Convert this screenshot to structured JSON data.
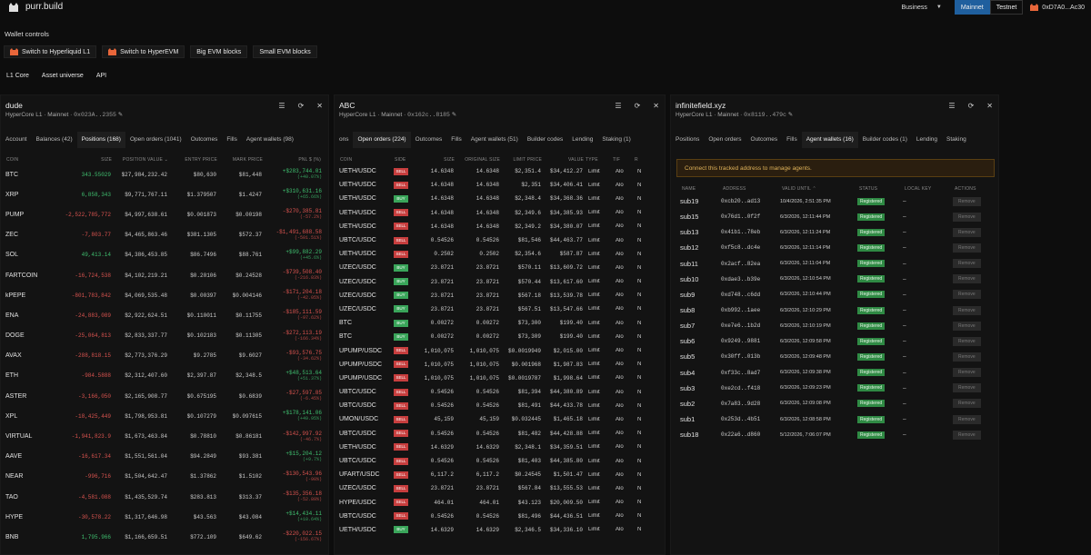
{
  "app": {
    "title": "purr.build"
  },
  "top": {
    "business": "Business",
    "mainnet": "Mainnet",
    "testnet": "Testnet",
    "address": "0xD7A0...Ac30"
  },
  "wallet_controls": {
    "title": "Wallet controls",
    "buttons": [
      "Switch to Hyperliquid L1",
      "Switch to HyperEVM",
      "Big EVM blocks",
      "Small EVM blocks"
    ]
  },
  "nav": [
    "L1 Core",
    "Asset universe",
    "API"
  ],
  "panels": [
    {
      "title": "dude",
      "network": "HyperCore L1 · Mainnet · ",
      "address": "0x023A..2355",
      "tabs": [
        "Account",
        "Balances (42)",
        "Positions (168)",
        "Open orders (1041)",
        "Outcomes",
        "Fills",
        "Agent wallets (98)"
      ],
      "active_tab": 2,
      "headers": [
        "COIN",
        "SIZE",
        "POSITION VALUE ⌄",
        "ENTRY PRICE",
        "MARK PRICE",
        "PNL $ (%)"
      ],
      "rows": [
        [
          "BTC",
          "343.55029",
          "$27,984,232.42",
          "$80,630",
          "$81,448",
          "+$283,744.01",
          "(+40.07%)"
        ],
        [
          "XRP",
          "6,858,343",
          "$9,771,767.11",
          "$1.379507",
          "$1.4247",
          "+$310,631.16",
          "(+65.66%)"
        ],
        [
          "PUMP",
          "-2,522,785,772",
          "$4,997,638.61",
          "$0.001873",
          "$0.00198",
          "-$270,385.81",
          "(-57.2%)"
        ],
        [
          "ZEC",
          "-7,803.77",
          "$4,465,863.46",
          "$381.1305",
          "$572.37",
          "-$1,491,688.58",
          "(-501.51%)"
        ],
        [
          "SOL",
          "49,413.14",
          "$4,386,453.85",
          "$86.7496",
          "$88.761",
          "+$99,882.29",
          "(+45.6%)"
        ],
        [
          "FARTCOIN",
          "-16,724,538",
          "$4,102,219.21",
          "$0.20106",
          "$0.24528",
          "-$739,508.40",
          "(-216.83%)"
        ],
        [
          "kPEPE",
          "-801,783,842",
          "$4,069,535.48",
          "$0.00397",
          "$0.004146",
          "-$171,204.18",
          "(-42.05%)"
        ],
        [
          "ENA",
          "-24,883,089",
          "$2,922,624.51",
          "$0.110011",
          "$0.11755",
          "-$185,111.59",
          "(-97.62%)"
        ],
        [
          "DOGE",
          "-25,064,813",
          "$2,833,337.77",
          "$0.102183",
          "$0.11305",
          "-$272,113.19",
          "(-166.34%)"
        ],
        [
          "AVAX",
          "-288,818.15",
          "$2,773,376.29",
          "$9.2785",
          "$9.6027",
          "-$93,576.75",
          "(-34.62%)"
        ],
        [
          "ETH",
          "-984.5888",
          "$2,312,407.60",
          "$2,397.87",
          "$2,348.5",
          "+$48,513.64",
          "(+51.37%)"
        ],
        [
          "ASTER",
          "-3,166,050",
          "$2,165,908.77",
          "$0.675195",
          "$0.6839",
          "-$27,597.85",
          "(-6.45%)"
        ],
        [
          "XPL",
          "-18,425,449",
          "$1,798,953.81",
          "$0.107279",
          "$0.097615",
          "+$178,141.06",
          "(+49.95%)"
        ],
        [
          "VIRTUAL",
          "-1,941,823.9",
          "$1,673,463.84",
          "$0.78810",
          "$0.86181",
          "-$142,997.92",
          "(-46.7%)"
        ],
        [
          "AAVE",
          "-16,617.34",
          "$1,551,561.04",
          "$94.2849",
          "$93.381",
          "+$15,204.12",
          "(+9.7%)"
        ],
        [
          "NEAR",
          "-996,716",
          "$1,504,642.47",
          "$1.37862",
          "$1.5102",
          "-$130,543.96",
          "(-90%)"
        ],
        [
          "TAO",
          "-4,581.088",
          "$1,435,529.74",
          "$283.813",
          "$313.37",
          "-$135,356.18",
          "(-52.89%)"
        ],
        [
          "HYPE",
          "-30,578.22",
          "$1,317,646.98",
          "$43.563",
          "$43.084",
          "+$14,434.11",
          "(+10.64%)"
        ],
        [
          "BNB",
          "1,795.966",
          "$1,166,659.51",
          "$772.109",
          "$649.62",
          "-$220,022.15",
          "(-156.67%)"
        ]
      ]
    },
    {
      "title": "ABC",
      "network": "HyperCore L1 · Mainnet · ",
      "address": "0x162c..8185",
      "tabs": [
        "ons",
        "Open orders (224)",
        "Outcomes",
        "Fills",
        "Agent wallets (51)",
        "Builder codes",
        "Lending",
        "Staking (1)"
      ],
      "active_tab": 1,
      "headers": [
        "COIN",
        "SIDE",
        "SIZE",
        "ORIGINAL SIZE",
        "LIMIT PRICE",
        "VALUE",
        "TYPE",
        "TIF",
        "R"
      ],
      "rows": [
        [
          "UETH/USDC",
          "SELL",
          "14.6348",
          "14.6348",
          "$2,351.4",
          "$34,412.27",
          "Limit",
          "Alo",
          "N"
        ],
        [
          "UETH/USDC",
          "SELL",
          "14.6348",
          "14.6348",
          "$2,351",
          "$34,406.41",
          "Limit",
          "Alo",
          "N"
        ],
        [
          "UETH/USDC",
          "BUY",
          "14.6348",
          "14.6348",
          "$2,348.4",
          "$34,368.36",
          "Limit",
          "Alo",
          "N"
        ],
        [
          "UETH/USDC",
          "SELL",
          "14.6348",
          "14.6348",
          "$2,349.6",
          "$34,385.93",
          "Limit",
          "Alo",
          "N"
        ],
        [
          "UETH/USDC",
          "SELL",
          "14.6348",
          "14.6348",
          "$2,349.2",
          "$34,380.07",
          "Limit",
          "Alo",
          "N"
        ],
        [
          "UBTC/USDC",
          "SELL",
          "0.54526",
          "0.54526",
          "$81,546",
          "$44,463.77",
          "Limit",
          "Alo",
          "N"
        ],
        [
          "UETH/USDC",
          "SELL",
          "0.2502",
          "0.2502",
          "$2,354.6",
          "$587.87",
          "Limit",
          "Alo",
          "N"
        ],
        [
          "UZEC/USDC",
          "BUY",
          "23.8721",
          "23.8721",
          "$570.11",
          "$13,609.72",
          "Limit",
          "Alo",
          "N"
        ],
        [
          "UZEC/USDC",
          "BUY",
          "23.8721",
          "23.8721",
          "$570.44",
          "$13,617.60",
          "Limit",
          "Alo",
          "N"
        ],
        [
          "UZEC/USDC",
          "BUY",
          "23.8721",
          "23.8721",
          "$567.18",
          "$13,539.78",
          "Limit",
          "Alo",
          "N"
        ],
        [
          "UZEC/USDC",
          "BUY",
          "23.8721",
          "23.8721",
          "$567.51",
          "$13,547.66",
          "Limit",
          "Alo",
          "N"
        ],
        [
          "BTC",
          "BUY",
          "0.00272",
          "0.00272",
          "$73,300",
          "$199.40",
          "Limit",
          "Alo",
          "N"
        ],
        [
          "BTC",
          "BUY",
          "0.00272",
          "0.00272",
          "$73,309",
          "$199.40",
          "Limit",
          "Alo",
          "N"
        ],
        [
          "UPUMP/USDC",
          "SELL",
          "1,010,075",
          "1,010,075",
          "$0.0019949",
          "$2,015.00",
          "Limit",
          "Alo",
          "N"
        ],
        [
          "UPUMP/USDC",
          "SELL",
          "1,010,075",
          "1,010,075",
          "$0.001968",
          "$1,987.83",
          "Limit",
          "Alo",
          "N"
        ],
        [
          "UPUMP/USDC",
          "SELL",
          "1,010,075",
          "1,010,075",
          "$0.0019787",
          "$1,998.64",
          "Limit",
          "Alo",
          "N"
        ],
        [
          "UBTC/USDC",
          "SELL",
          "0.54526",
          "0.54526",
          "$81,394",
          "$44,380.89",
          "Limit",
          "Alo",
          "N"
        ],
        [
          "UBTC/USDC",
          "SELL",
          "0.54526",
          "0.54526",
          "$81,491",
          "$44,433.78",
          "Limit",
          "Alo",
          "N"
        ],
        [
          "UMON/USDC",
          "SELL",
          "45,159",
          "45,159",
          "$0.032445",
          "$1,465.18",
          "Limit",
          "Alo",
          "N"
        ],
        [
          "UBTC/USDC",
          "SELL",
          "0.54526",
          "0.54526",
          "$81,482",
          "$44,428.88",
          "Limit",
          "Alo",
          "N"
        ],
        [
          "UETH/USDC",
          "SELL",
          "14.6329",
          "14.6329",
          "$2,348.1",
          "$34,359.51",
          "Limit",
          "Alo",
          "N"
        ],
        [
          "UBTC/USDC",
          "SELL",
          "0.54526",
          "0.54526",
          "$81,403",
          "$44,385.80",
          "Limit",
          "Alo",
          "N"
        ],
        [
          "UFART/USDC",
          "SELL",
          "6,117.2",
          "6,117.2",
          "$0.24545",
          "$1,501.47",
          "Limit",
          "Alo",
          "N"
        ],
        [
          "UZEC/USDC",
          "SELL",
          "23.8721",
          "23.8721",
          "$567.84",
          "$13,555.53",
          "Limit",
          "Alo",
          "N"
        ],
        [
          "HYPE/USDC",
          "SELL",
          "464.01",
          "464.01",
          "$43.123",
          "$20,009.50",
          "Limit",
          "Alo",
          "N"
        ],
        [
          "UBTC/USDC",
          "SELL",
          "0.54526",
          "0.54526",
          "$81,496",
          "$44,436.51",
          "Limit",
          "Alo",
          "N"
        ],
        [
          "UETH/USDC",
          "BUY",
          "14.6329",
          "14.6329",
          "$2,346.5",
          "$34,336.10",
          "Limit",
          "Alo",
          "N"
        ]
      ]
    },
    {
      "title": "infinitefield.xyz",
      "network": "HyperCore L1 · Mainnet · ",
      "address": "0x8119..479c",
      "tabs": [
        "Positions",
        "Open orders",
        "Outcomes",
        "Fills",
        "Agent wallets (16)",
        "Builder codes (1)",
        "Lending",
        "Staking"
      ],
      "active_tab": 4,
      "alert": "Connect this tracked address to manage agents.",
      "headers": [
        "NAME",
        "ADDRESS",
        "VALID UNTIL ⌃",
        "STATUS",
        "LOCAL KEY",
        "ACTIONS"
      ],
      "status_label": "Registered",
      "local_key": "—",
      "action_label": "Remove",
      "rows": [
        [
          "sub19",
          "0xcb20..ad13",
          "10/4/2026, 2:51:35 PM"
        ],
        [
          "sub15",
          "0x76d1..0f2f",
          "6/3/2026, 12:11:44 PM"
        ],
        [
          "sub13",
          "0x41b1..78eb",
          "6/3/2026, 12:11:24 PM"
        ],
        [
          "sub12",
          "0xf5c8..dc4e",
          "6/3/2026, 12:11:14 PM"
        ],
        [
          "sub11",
          "0x2acf..82ea",
          "6/3/2026, 12:11:04 PM"
        ],
        [
          "sub10",
          "0xdae3..b39e",
          "6/3/2026, 12:10:54 PM"
        ],
        [
          "sub9",
          "0xd748..c6dd",
          "6/3/2026, 12:10:44 PM"
        ],
        [
          "sub8",
          "0xb992..1aee",
          "6/3/2026, 12:10:29 PM"
        ],
        [
          "sub7",
          "0xe7e6..1b2d",
          "6/3/2026, 12:10:19 PM"
        ],
        [
          "sub6",
          "0x9249..9881",
          "6/3/2026, 12:09:58 PM"
        ],
        [
          "sub5",
          "0x30ff..013b",
          "6/3/2026, 12:09:48 PM"
        ],
        [
          "sub4",
          "0xf33c..8ad7",
          "6/3/2026, 12:09:38 PM"
        ],
        [
          "sub3",
          "0xe2cd..f418",
          "6/3/2026, 12:09:23 PM"
        ],
        [
          "sub2",
          "0x7a83..9d28",
          "6/3/2026, 12:09:08 PM"
        ],
        [
          "sub1",
          "0x253d..4b51",
          "6/3/2026, 12:08:58 PM"
        ],
        [
          "sub18",
          "0x22a6..d860",
          "5/12/2026, 7:06:07 PM"
        ]
      ]
    }
  ]
}
